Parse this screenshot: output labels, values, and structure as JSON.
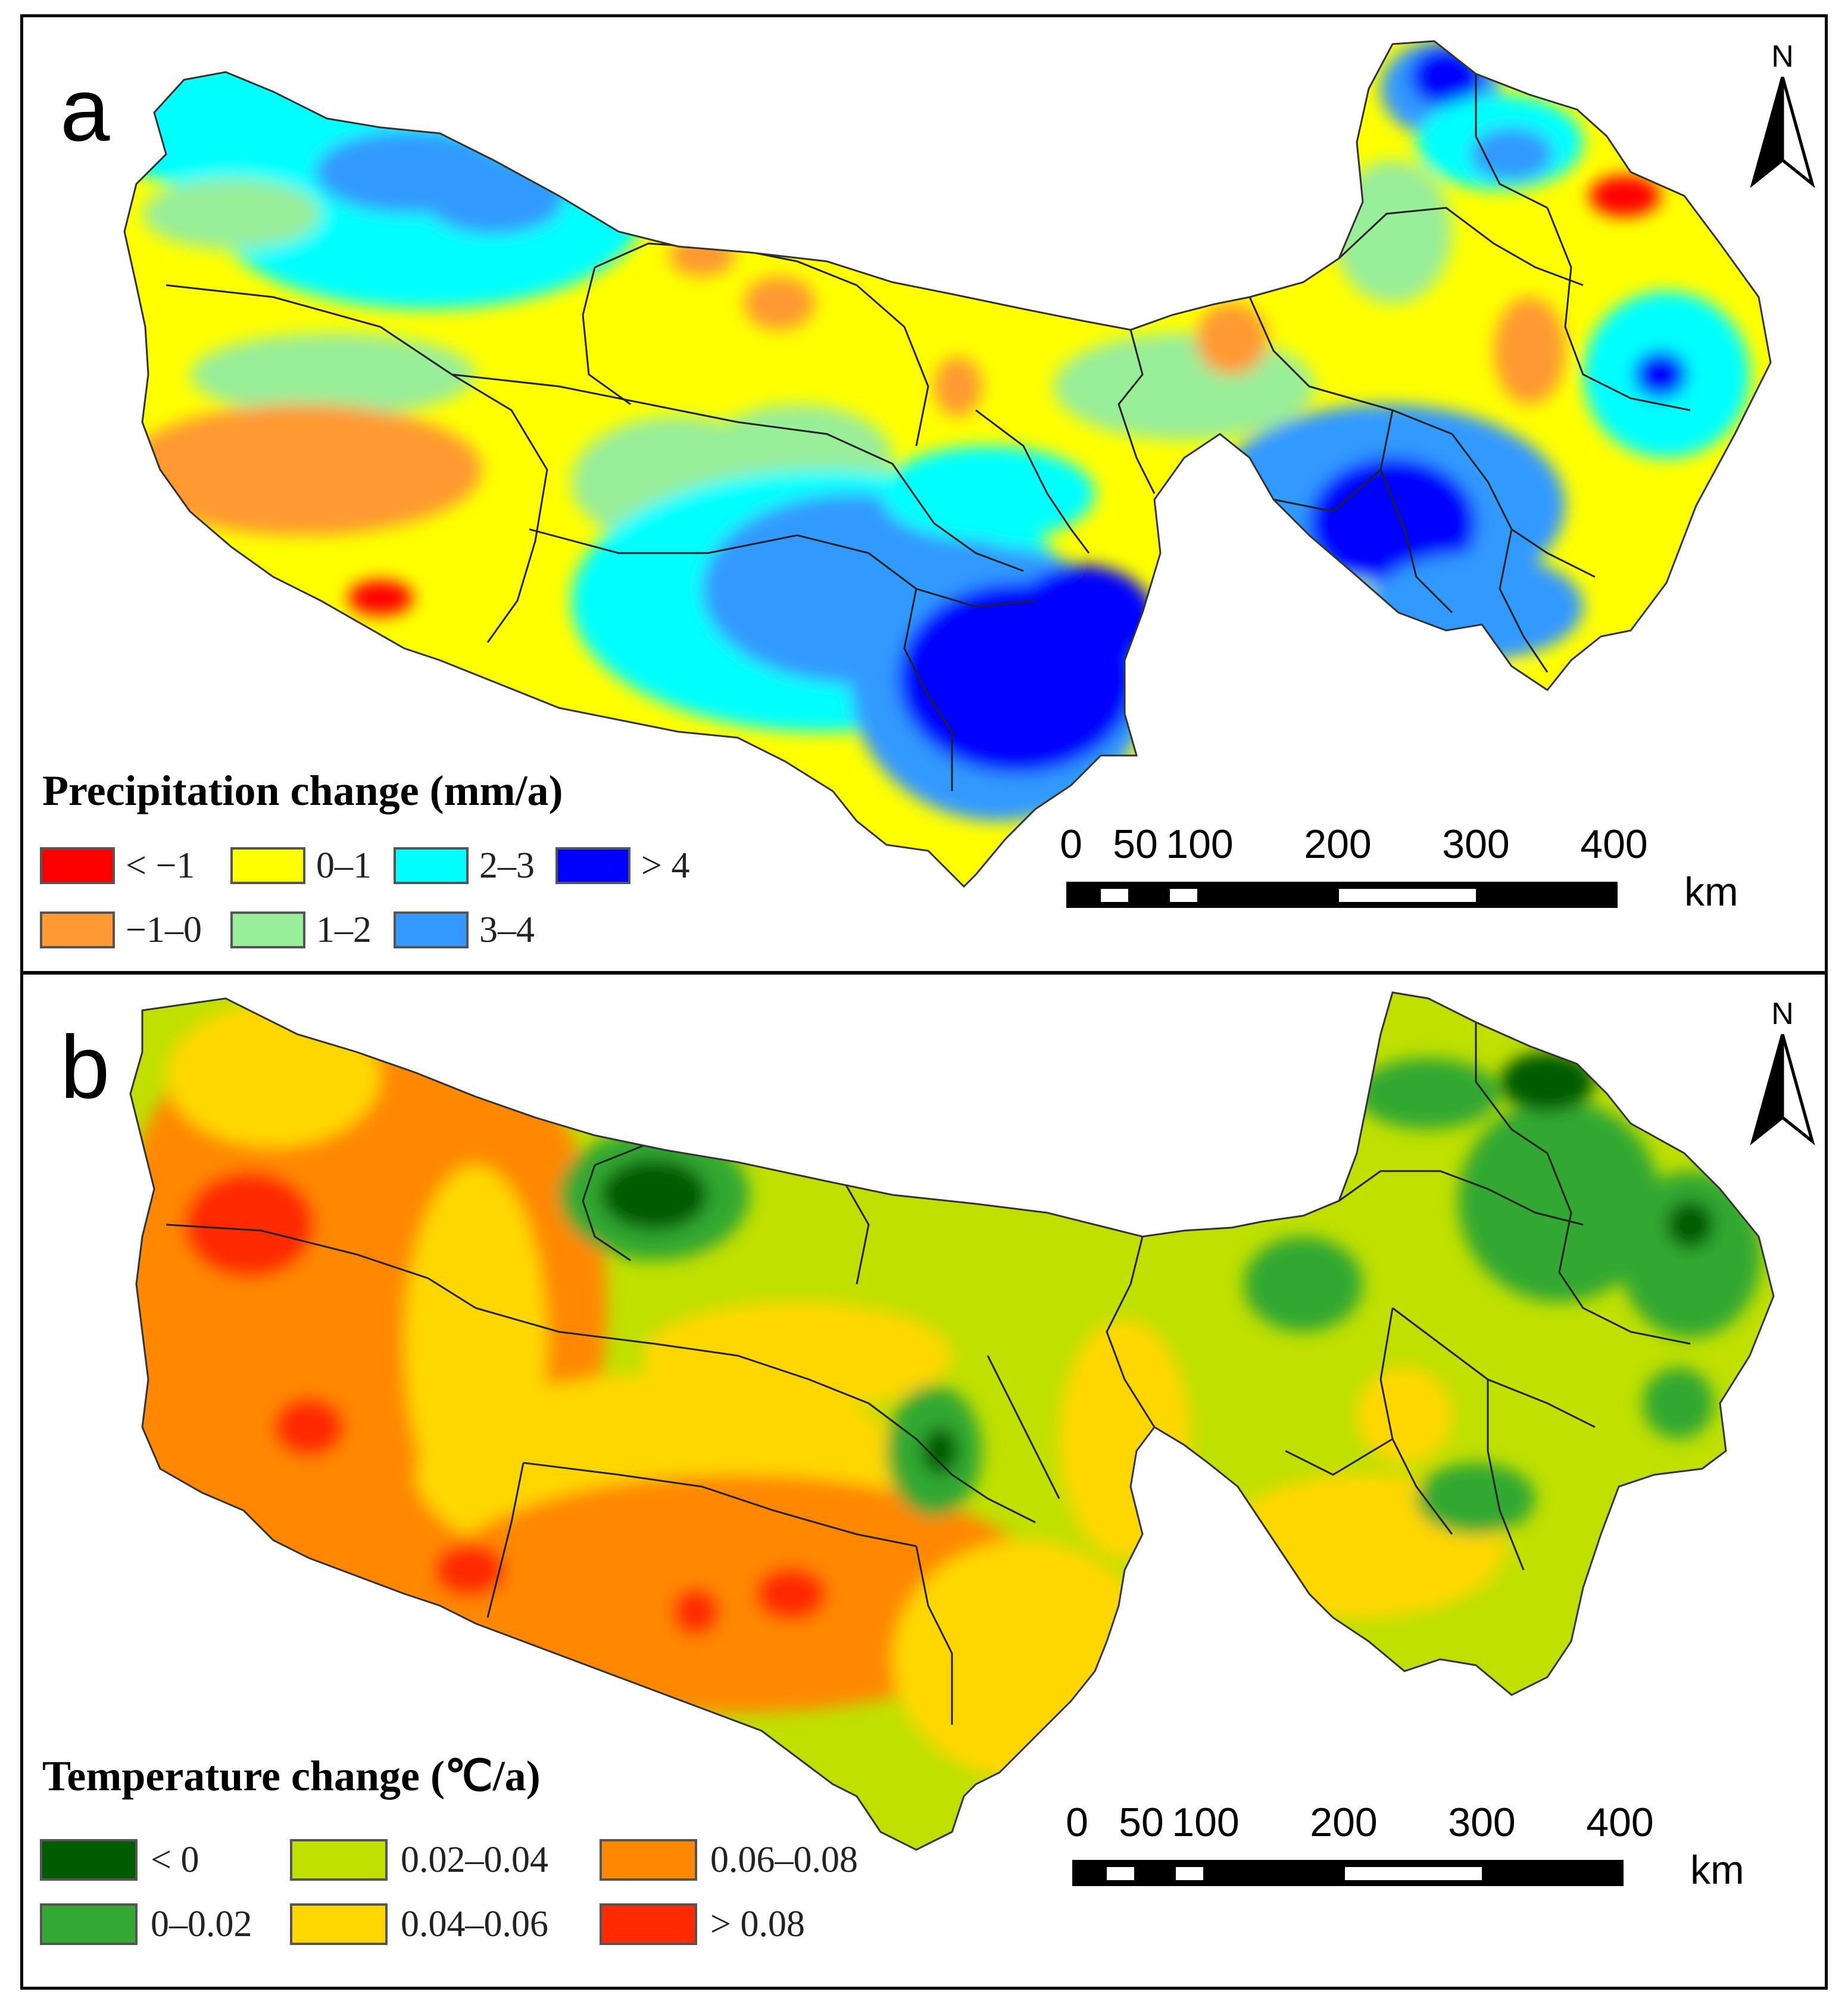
{
  "panels": [
    {
      "letter": "a",
      "legend_title": "Precipitation change (mm/a)",
      "legend": [
        {
          "label": "< −1",
          "color": "#ff0000"
        },
        {
          "label": "0–1",
          "color": "#ffff00"
        },
        {
          "label": "2–3",
          "color": "#00ffff"
        },
        {
          "label": "> 4",
          "color": "#0000ff"
        },
        {
          "label": "−1–0",
          "color": "#ff9933"
        },
        {
          "label": "1–2",
          "color": "#99ee99"
        },
        {
          "label": "3–4",
          "color": "#3399ff"
        }
      ],
      "north_label": "N",
      "scale": {
        "ticks": [
          "0",
          "50",
          "100",
          "200",
          "300",
          "400"
        ],
        "unit": "km"
      }
    },
    {
      "letter": "b",
      "legend_title": "Temperature change (℃/a)",
      "legend": [
        {
          "label": "< 0",
          "color": "#005c00"
        },
        {
          "label": "0.02–0.04",
          "color": "#bfe000"
        },
        {
          "label": "0.06–0.08",
          "color": "#ff8800"
        },
        {
          "label": "0–0.02",
          "color": "#33a833"
        },
        {
          "label": "0.04–0.06",
          "color": "#ffd700"
        },
        {
          "label": "> 0.08",
          "color": "#ff2a00"
        }
      ],
      "north_label": "N",
      "scale": {
        "ticks": [
          "0",
          "50",
          "100",
          "200",
          "300",
          "400"
        ],
        "unit": "km"
      }
    }
  ]
}
